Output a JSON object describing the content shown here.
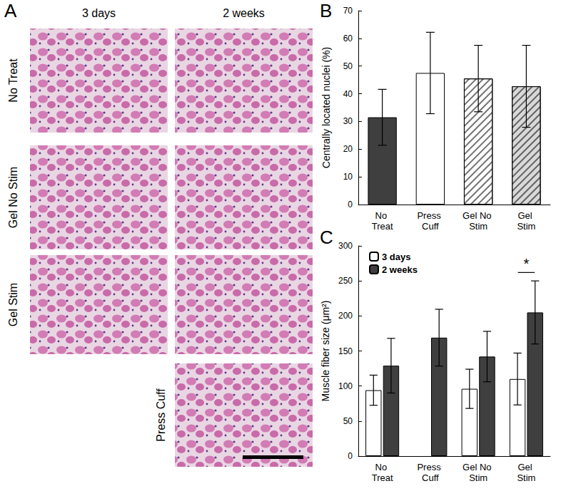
{
  "image_panel": {
    "panel": "A",
    "columns": [
      "3 days",
      "2 weeks"
    ],
    "rows": [
      {
        "label": "No Treat",
        "columns": [
          "3 days",
          "2 weeks"
        ]
      },
      {
        "label": "Gel No Stim",
        "columns": [
          "3 days",
          "2 weeks"
        ]
      },
      {
        "label": "Gel Stim",
        "columns": [
          "3 days",
          "2 weeks"
        ]
      },
      {
        "label": "Press Cuff",
        "columns": [
          "2 weeks"
        ]
      }
    ]
  },
  "chart_data": [
    {
      "panel": "B",
      "type": "bar",
      "categories": [
        "No Treat",
        "Press Cuff",
        "Gel No Stim",
        "Gel Stim"
      ],
      "values": [
        31.5,
        47.5,
        45.5,
        42.7
      ],
      "errors": [
        10.1,
        14.7,
        12,
        14.8
      ],
      "colors": [
        "#3f3f3f",
        "#ffffff",
        "#ffffff",
        "#d9d9d9"
      ],
      "y_label": "Centrally located nuclei (%)",
      "ylim": [
        0,
        70
      ],
      "yticks": [
        0,
        10,
        20,
        30,
        40,
        50,
        60,
        70
      ]
    },
    {
      "panel": "C",
      "type": "bar",
      "categories": [
        "No Treat",
        "Press Cuff",
        "Gel No Stim",
        "Gel Stim"
      ],
      "series": [
        {
          "name": "3 days",
          "color": "#ffffff",
          "values": [
            94,
            null,
            96,
            110
          ],
          "errors": [
            21.5,
            null,
            28,
            37
          ]
        },
        {
          "name": "2 weeks",
          "color": "#3f3f3f",
          "values": [
            129,
            169,
            142,
            205
          ],
          "errors": [
            39,
            40.5,
            36,
            45
          ]
        }
      ],
      "y_label": "Muscle fiber size (μm²)",
      "ylim": [
        0,
        300
      ],
      "yticks": [
        0,
        50,
        100,
        150,
        200,
        250,
        300
      ],
      "legend": "upper left",
      "annotations": [
        {
          "text": "*",
          "category": "Gel Stim",
          "y": 262
        }
      ]
    }
  ]
}
